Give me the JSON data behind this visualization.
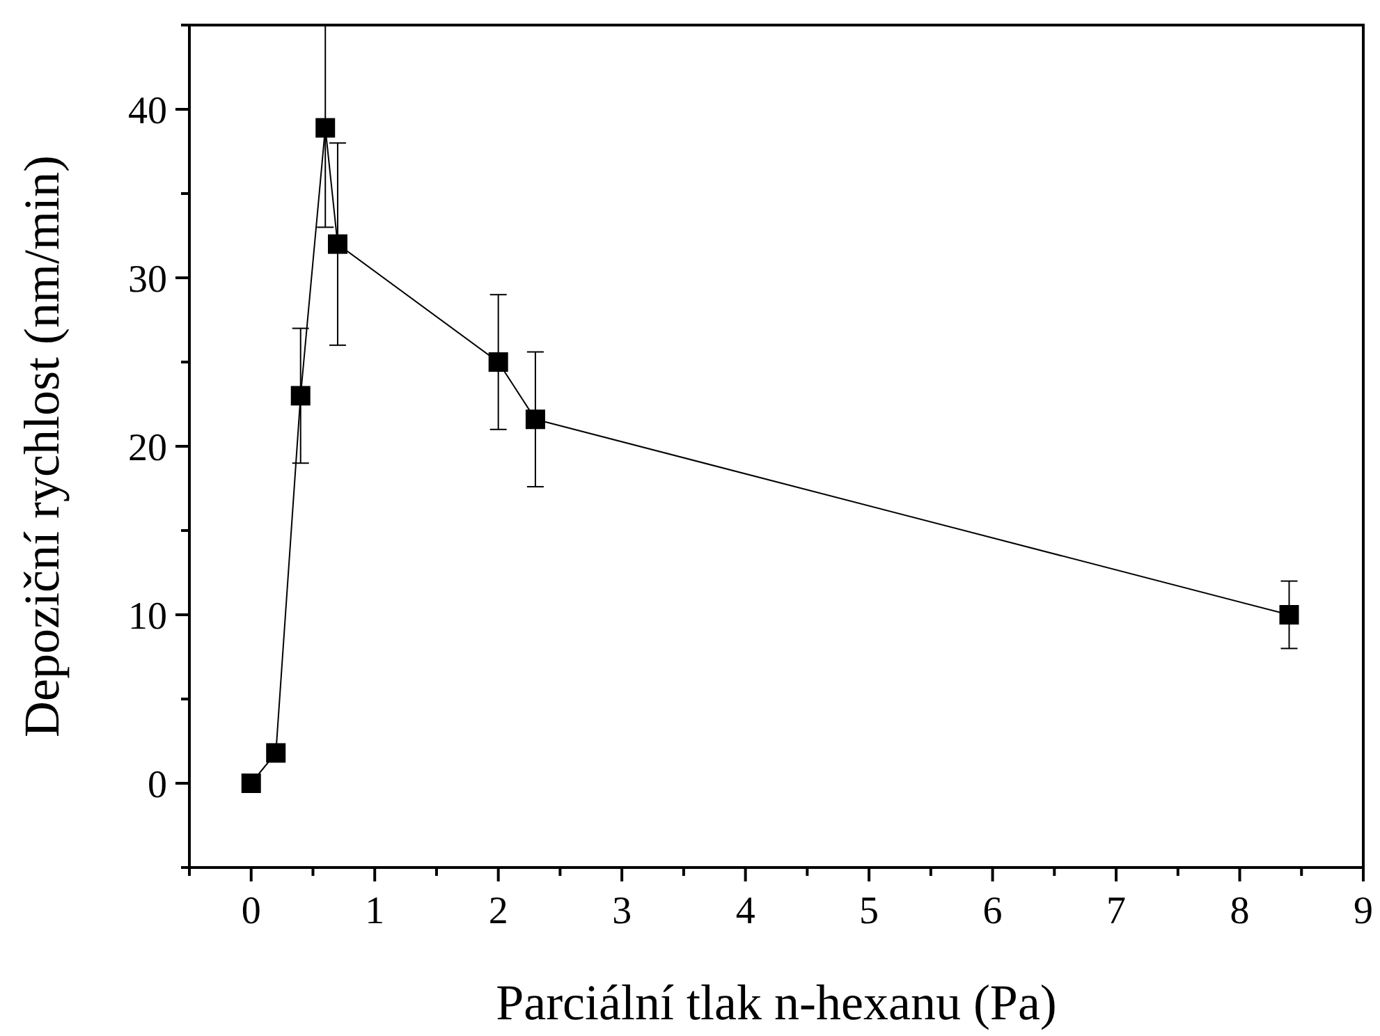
{
  "chart_data": {
    "type": "line",
    "xlabel": "Parciální tlak n-hexanu (Pa)",
    "ylabel": "Depoziční rychlost (nm/min)",
    "x": [
      0,
      0.2,
      0.4,
      0.6,
      0.7,
      2,
      2.3,
      8.4
    ],
    "values": [
      0,
      1.8,
      23,
      38.9,
      32,
      25,
      21.6,
      10
    ],
    "errors": [
      null,
      null,
      [
        19,
        27
      ],
      [
        33,
        45
      ],
      [
        26,
        38
      ],
      [
        21,
        29
      ],
      [
        17.6,
        25.6
      ],
      [
        8,
        12
      ]
    ],
    "color": "#000000",
    "marker": "square",
    "line_style": "solid",
    "grid": false,
    "xlim": [
      -0.5,
      9
    ],
    "xticks": [
      {
        "value": -0.5,
        "label": null
      },
      0,
      {
        "value": 0.5,
        "label": null
      },
      1,
      {
        "value": 1.5,
        "label": null
      },
      2,
      {
        "value": 2.5,
        "label": null
      },
      3,
      {
        "value": 3.5,
        "label": null
      },
      4,
      {
        "value": 4.5,
        "label": null
      },
      5,
      {
        "value": 5.5,
        "label": null
      },
      6,
      {
        "value": 6.5,
        "label": null
      },
      7,
      {
        "value": 7.5,
        "label": null
      },
      8,
      {
        "value": 8.5,
        "label": null
      },
      9
    ],
    "ylim": [
      -5,
      45
    ],
    "yticks": [
      {
        "value": -5,
        "label": null
      },
      0,
      {
        "value": 5,
        "label": null
      },
      10,
      {
        "value": 15,
        "label": null
      },
      20,
      {
        "value": 25,
        "label": null
      },
      30,
      {
        "value": 35,
        "label": null
      },
      40,
      {
        "value": 45,
        "label": null
      }
    ]
  }
}
